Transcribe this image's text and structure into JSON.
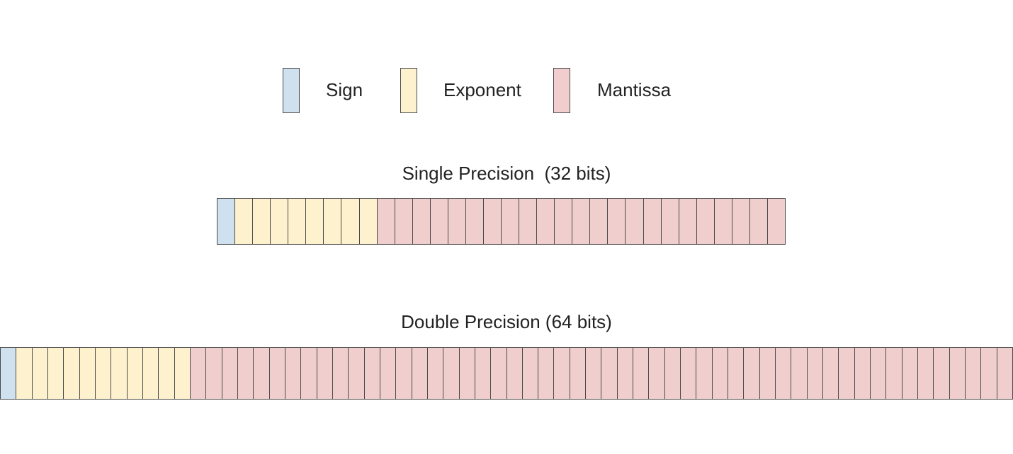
{
  "colors": {
    "sign": "#cfe0ef",
    "exponent": "#fdf2cd",
    "mantissa": "#f1cece",
    "border": "#4a4a4a"
  },
  "legend": {
    "sign_label": "Sign",
    "exponent_label": "Exponent",
    "mantissa_label": "Mantissa"
  },
  "single": {
    "title": "Single Precision  (32 bits)",
    "sign_bits": 1,
    "exponent_bits": 8,
    "mantissa_bits": 23
  },
  "double": {
    "title": "Double Precision (64 bits)",
    "sign_bits": 1,
    "exponent_bits": 11,
    "mantissa_bits": 52
  }
}
